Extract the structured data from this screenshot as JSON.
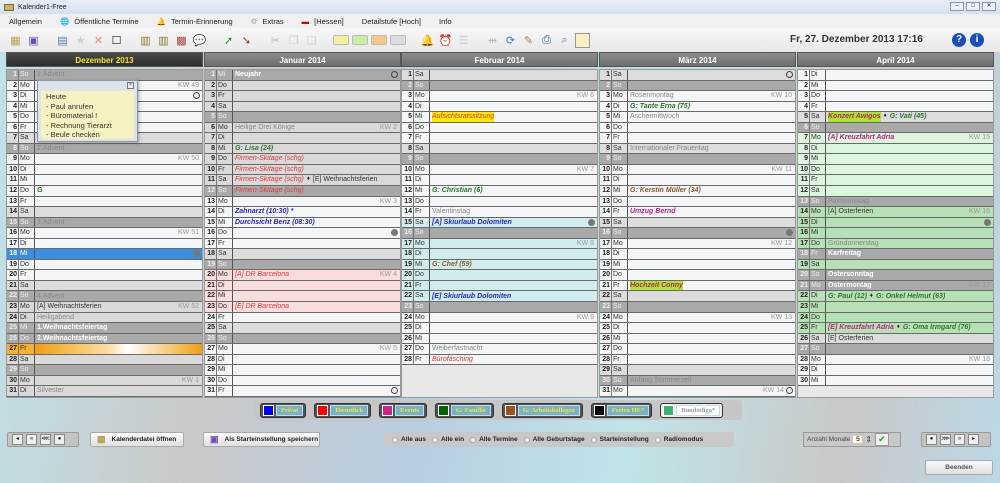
{
  "window": {
    "title": "Kalender1-Free"
  },
  "menu": [
    {
      "label": "Allgemein",
      "icon": ""
    },
    {
      "label": "Öffentliche Termine",
      "icon": "globe-icon"
    },
    {
      "label": "Termin-Erinnerung",
      "icon": "bell-icon"
    },
    {
      "label": "Extras",
      "icon": "gear-icon"
    },
    {
      "label": "[Hessen]",
      "icon": "german-flag-icon"
    },
    {
      "label": "Detailstufe [Hoch]",
      "icon": ""
    },
    {
      "label": "Info",
      "icon": ""
    }
  ],
  "toolbar": {
    "datetime": "Fr, 27. Dezember 2013  17:16",
    "swatches": [
      "#f3f0a0",
      "#c8f0a0",
      "#f5c88a",
      "#dddddd"
    ],
    "note_color": "#f6f2c0"
  },
  "note": {
    "lines": [
      "Heute",
      "- Paul anrufen",
      "- Büromaterial !",
      "- Rechnung Tierarzt",
      "- Beule checken"
    ]
  },
  "months": [
    {
      "title": "Dezember 2013",
      "current": true,
      "days": [
        {
          "wd": "So",
          "bg": "so",
          "items": [
            {
              "text": "1.Advent",
              "style": "hol"
            }
          ]
        },
        {
          "wd": "Mo",
          "bg": "n",
          "kw": "KW 49"
        },
        {
          "wd": "Di",
          "bg": "n",
          "mark": "empty"
        },
        {
          "wd": "Mi",
          "bg": "n"
        },
        {
          "wd": "Do",
          "bg": "n"
        },
        {
          "wd": "Fr",
          "bg": "n"
        },
        {
          "wd": "Sa",
          "bg": "sa"
        },
        {
          "wd": "So",
          "bg": "so",
          "items": [
            {
              "text": "2.Advent",
              "style": "hol"
            }
          ]
        },
        {
          "wd": "Mo",
          "bg": "n",
          "kw": "KW 50"
        },
        {
          "wd": "Di",
          "bg": "n"
        },
        {
          "wd": "Mi",
          "bg": "n"
        },
        {
          "wd": "Do",
          "bg": "n",
          "items": [
            {
              "text": "G",
              "style": "bd"
            }
          ]
        },
        {
          "wd": "Fr",
          "bg": "n"
        },
        {
          "wd": "Sa",
          "bg": "sa"
        },
        {
          "wd": "So",
          "bg": "so",
          "items": [
            {
              "text": "3.Advent",
              "style": "hol"
            }
          ]
        },
        {
          "wd": "Mo",
          "bg": "n",
          "kw": "KW 51"
        },
        {
          "wd": "Di",
          "bg": "n"
        },
        {
          "wd": "Mi",
          "bg": "sel",
          "mark": "full"
        },
        {
          "wd": "Do",
          "bg": "n"
        },
        {
          "wd": "Fr",
          "bg": "n"
        },
        {
          "wd": "Sa",
          "bg": "sa"
        },
        {
          "wd": "So",
          "bg": "so",
          "items": [
            {
              "text": "4.Advent",
              "style": "hol"
            }
          ]
        },
        {
          "wd": "Mo",
          "bg": "fe",
          "kw": "KW 52",
          "items": [
            {
              "text": "[A] Weihnachtsferien",
              "style": "fer"
            }
          ]
        },
        {
          "wd": "Di",
          "bg": "fe",
          "items": [
            {
              "text": "Heiligabend",
              "style": "hol"
            }
          ]
        },
        {
          "wd": "Mi",
          "bg": "so",
          "items": [
            {
              "text": "1.Weihnachtsfeiertag",
              "style": "holb"
            }
          ]
        },
        {
          "wd": "Do",
          "bg": "so",
          "items": [
            {
              "text": "2.Weihnachtsfeiertag",
              "style": "holb"
            }
          ]
        },
        {
          "wd": "Fr",
          "bg": "today"
        },
        {
          "wd": "Sa",
          "bg": "fe"
        },
        {
          "wd": "So",
          "bg": "so"
        },
        {
          "wd": "Mo",
          "bg": "fe",
          "kw": "KW 1"
        },
        {
          "wd": "Di",
          "bg": "fe",
          "items": [
            {
              "text": "Silvester",
              "style": "hol"
            }
          ]
        }
      ]
    },
    {
      "title": "Januar 2014",
      "current": false,
      "days": [
        {
          "wd": "Mi",
          "bg": "so",
          "mark": "empty",
          "items": [
            {
              "text": "Neujahr",
              "style": "holb"
            }
          ]
        },
        {
          "wd": "Do",
          "bg": "fe"
        },
        {
          "wd": "Fr",
          "bg": "fe"
        },
        {
          "wd": "Sa",
          "bg": "fe"
        },
        {
          "wd": "So",
          "bg": "so"
        },
        {
          "wd": "Mo",
          "bg": "fe",
          "kw": "KW 2",
          "items": [
            {
              "text": "Heilige Drei Könige",
              "style": "hol"
            }
          ]
        },
        {
          "wd": "Di",
          "bg": "fe"
        },
        {
          "wd": "Mi",
          "bg": "fe",
          "items": [
            {
              "text": "G: Lisa (24)",
              "style": "bd"
            }
          ]
        },
        {
          "wd": "Do",
          "bg": "fe",
          "items": [
            {
              "text": "Firmen-Skitage (schg)",
              "style": "work"
            }
          ]
        },
        {
          "wd": "Fr",
          "bg": "fe",
          "items": [
            {
              "text": "Firmen-Skitage (schg)",
              "style": "work"
            }
          ]
        },
        {
          "wd": "Sa",
          "bg": "fe",
          "items": [
            {
              "text": "Firmen-Skitage (schg)",
              "style": "work"
            },
            {
              "text": "[E] Weihnachtsferien",
              "style": "fer"
            }
          ]
        },
        {
          "wd": "So",
          "bg": "so",
          "items": [
            {
              "text": "Firmen-Skitage (schg)",
              "style": "work"
            }
          ]
        },
        {
          "wd": "Mo",
          "bg": "n",
          "kw": "KW 3"
        },
        {
          "wd": "Di",
          "bg": "n",
          "items": [
            {
              "text": "Zahnarzt (10:30) *",
              "style": "priv"
            }
          ]
        },
        {
          "wd": "Mi",
          "bg": "n",
          "items": [
            {
              "text": "Durchsicht Benz (08:30)",
              "style": "priv"
            }
          ]
        },
        {
          "wd": "Do",
          "bg": "n",
          "mark": "full"
        },
        {
          "wd": "Fr",
          "bg": "n"
        },
        {
          "wd": "Sa",
          "bg": "sa"
        },
        {
          "wd": "So",
          "bg": "so"
        },
        {
          "wd": "Mo",
          "bg": "pk",
          "kw": "KW 4",
          "items": [
            {
              "text": "[A] DR Barcelona",
              "style": "work"
            }
          ]
        },
        {
          "wd": "Di",
          "bg": "pk"
        },
        {
          "wd": "Mi",
          "bg": "pk"
        },
        {
          "wd": "Do",
          "bg": "pk",
          "items": [
            {
              "text": "[E] DR Barcelona",
              "style": "work"
            }
          ]
        },
        {
          "wd": "Fr",
          "bg": "n"
        },
        {
          "wd": "Sa",
          "bg": "sa"
        },
        {
          "wd": "So",
          "bg": "so"
        },
        {
          "wd": "Mo",
          "bg": "n",
          "kw": "KW 5"
        },
        {
          "wd": "Di",
          "bg": "n"
        },
        {
          "wd": "Mi",
          "bg": "n"
        },
        {
          "wd": "Do",
          "bg": "n"
        },
        {
          "wd": "Fr",
          "bg": "n",
          "mark": "empty"
        }
      ]
    },
    {
      "title": "Februar 2014",
      "current": false,
      "days": [
        {
          "wd": "Sa",
          "bg": "sa"
        },
        {
          "wd": "So",
          "bg": "so"
        },
        {
          "wd": "Mo",
          "bg": "n",
          "kw": "KW 6"
        },
        {
          "wd": "Di",
          "bg": "n"
        },
        {
          "wd": "Mi",
          "bg": "n",
          "items": [
            {
              "text": "Aufsichtsratssitzung",
              "style": "hy"
            }
          ]
        },
        {
          "wd": "Do",
          "bg": "n"
        },
        {
          "wd": "Fr",
          "bg": "n"
        },
        {
          "wd": "Sa",
          "bg": "sa"
        },
        {
          "wd": "So",
          "bg": "so"
        },
        {
          "wd": "Mo",
          "bg": "n",
          "kw": "KW 7"
        },
        {
          "wd": "Di",
          "bg": "n"
        },
        {
          "wd": "Mi",
          "bg": "n",
          "items": [
            {
              "text": "G: Christian (6)",
              "style": "bd"
            }
          ]
        },
        {
          "wd": "Do",
          "bg": "n"
        },
        {
          "wd": "Fr",
          "bg": "n",
          "items": [
            {
              "text": "Valentinstag",
              "style": "hol"
            }
          ]
        },
        {
          "wd": "Sa",
          "bg": "cy",
          "mark": "full",
          "items": [
            {
              "text": "[A] Skiurlaub Dolomiten",
              "style": "priv"
            }
          ]
        },
        {
          "wd": "So",
          "bg": "so"
        },
        {
          "wd": "Mo",
          "bg": "cy",
          "kw": "KW 8"
        },
        {
          "wd": "Di",
          "bg": "cy"
        },
        {
          "wd": "Mi",
          "bg": "cy",
          "items": [
            {
              "text": "G: Chef (59)",
              "style": "col"
            }
          ]
        },
        {
          "wd": "Do",
          "bg": "cy"
        },
        {
          "wd": "Fr",
          "bg": "cy"
        },
        {
          "wd": "Sa",
          "bg": "cy",
          "items": [
            {
              "text": "[E] Skiurlaub Dolomiten",
              "style": "priv"
            }
          ]
        },
        {
          "wd": "So",
          "bg": "so"
        },
        {
          "wd": "Mo",
          "bg": "n",
          "kw": "KW 9"
        },
        {
          "wd": "Di",
          "bg": "n"
        },
        {
          "wd": "Mi",
          "bg": "n"
        },
        {
          "wd": "Do",
          "bg": "n",
          "items": [
            {
              "text": "Weiberfastnacht",
              "style": "hol"
            }
          ]
        },
        {
          "wd": "Fr",
          "bg": "n",
          "items": [
            {
              "text": "Bürofasching",
              "style": "work"
            }
          ]
        }
      ]
    },
    {
      "title": "März 2014",
      "current": false,
      "days": [
        {
          "wd": "Sa",
          "bg": "sa",
          "mark": "empty"
        },
        {
          "wd": "So",
          "bg": "so"
        },
        {
          "wd": "Mo",
          "bg": "n",
          "kw": "KW 10",
          "items": [
            {
              "text": "Rosenmontag",
              "style": "hol"
            }
          ]
        },
        {
          "wd": "Di",
          "bg": "n",
          "items": [
            {
              "text": "G: Tante Erna (75)",
              "style": "bd"
            }
          ]
        },
        {
          "wd": "Mi",
          "bg": "n",
          "items": [
            {
              "text": "Aschermittwoch",
              "style": "hol"
            }
          ]
        },
        {
          "wd": "Do",
          "bg": "n"
        },
        {
          "wd": "Fr",
          "bg": "n"
        },
        {
          "wd": "Sa",
          "bg": "sa",
          "items": [
            {
              "text": "Internationaler Frauentag",
              "style": "hol"
            }
          ]
        },
        {
          "wd": "So",
          "bg": "so"
        },
        {
          "wd": "Mo",
          "bg": "n",
          "kw": "KW 11"
        },
        {
          "wd": "Di",
          "bg": "n"
        },
        {
          "wd": "Mi",
          "bg": "n",
          "items": [
            {
              "text": "G: Kerstin Müller (34)",
              "style": "col"
            }
          ]
        },
        {
          "wd": "Do",
          "bg": "n"
        },
        {
          "wd": "Fr",
          "bg": "n",
          "items": [
            {
              "text": "Umzug Bernd",
              "style": "ev"
            }
          ]
        },
        {
          "wd": "Sa",
          "bg": "sa"
        },
        {
          "wd": "So",
          "bg": "so",
          "mark": "full"
        },
        {
          "wd": "Mo",
          "bg": "n",
          "kw": "KW 12"
        },
        {
          "wd": "Di",
          "bg": "n"
        },
        {
          "wd": "Mi",
          "bg": "n"
        },
        {
          "wd": "Do",
          "bg": "n"
        },
        {
          "wd": "Fr",
          "bg": "n",
          "items": [
            {
              "text": "Hochzeit Conny",
              "style": "hg"
            }
          ]
        },
        {
          "wd": "Sa",
          "bg": "sa"
        },
        {
          "wd": "So",
          "bg": "so"
        },
        {
          "wd": "Mo",
          "bg": "n",
          "kw": "KW 13"
        },
        {
          "wd": "Di",
          "bg": "n"
        },
        {
          "wd": "Mi",
          "bg": "n"
        },
        {
          "wd": "Do",
          "bg": "n"
        },
        {
          "wd": "Fr",
          "bg": "n"
        },
        {
          "wd": "Sa",
          "bg": "sa"
        },
        {
          "wd": "So",
          "bg": "so",
          "items": [
            {
              "text": "Anfang Sommerzeit",
              "style": "hol"
            }
          ]
        },
        {
          "wd": "Mo",
          "bg": "n",
          "kw": "KW 14",
          "mark": "empty"
        }
      ]
    },
    {
      "title": "April 2014",
      "current": false,
      "days": [
        {
          "wd": "Di",
          "bg": "n"
        },
        {
          "wd": "Mi",
          "bg": "n"
        },
        {
          "wd": "Do",
          "bg": "n"
        },
        {
          "wd": "Fr",
          "bg": "n"
        },
        {
          "wd": "Sa",
          "bg": "sa",
          "items": [
            {
              "text": "Konzert Awigos",
              "style": "hg"
            },
            {
              "text": "G: Vati (45)",
              "style": "bd"
            }
          ]
        },
        {
          "wd": "So",
          "bg": "so"
        },
        {
          "wd": "Mo",
          "bg": "lg",
          "kw": "KW 15",
          "items": [
            {
              "text": "[A] Kreuzfahrt Adria",
              "style": "ev"
            }
          ]
        },
        {
          "wd": "Di",
          "bg": "lg"
        },
        {
          "wd": "Mi",
          "bg": "lg"
        },
        {
          "wd": "Do",
          "bg": "lg"
        },
        {
          "wd": "Fr",
          "bg": "lg"
        },
        {
          "wd": "Sa",
          "bg": "lg"
        },
        {
          "wd": "So",
          "bg": "so",
          "items": [
            {
              "text": "Palmsonntag",
              "style": "hol"
            }
          ]
        },
        {
          "wd": "Mo",
          "bg": "g",
          "kw": "KW 16",
          "items": [
            {
              "text": "[A] Osterferien",
              "style": "fer"
            }
          ]
        },
        {
          "wd": "Di",
          "bg": "g",
          "mark": "full"
        },
        {
          "wd": "Mi",
          "bg": "g"
        },
        {
          "wd": "Do",
          "bg": "g",
          "items": [
            {
              "text": "Gründonnerstag",
              "style": "hol"
            }
          ]
        },
        {
          "wd": "Fr",
          "bg": "so",
          "items": [
            {
              "text": "Karfreitag",
              "style": "holb"
            }
          ]
        },
        {
          "wd": "Sa",
          "bg": "g"
        },
        {
          "wd": "So",
          "bg": "so",
          "items": [
            {
              "text": "Ostersonntag",
              "style": "holb"
            }
          ]
        },
        {
          "wd": "Mo",
          "bg": "so",
          "kw": "KW 17",
          "items": [
            {
              "text": "Ostermontag",
              "style": "holb"
            }
          ]
        },
        {
          "wd": "Di",
          "bg": "g",
          "items": [
            {
              "text": "G: Paul (12)",
              "style": "bd"
            },
            {
              "text": "G: Onkel Helmut (63)",
              "style": "bd"
            }
          ]
        },
        {
          "wd": "Mi",
          "bg": "g"
        },
        {
          "wd": "Do",
          "bg": "g"
        },
        {
          "wd": "Fr",
          "bg": "g",
          "items": [
            {
              "text": "[E] Kreuzfahrt Adria",
              "style": "ev"
            },
            {
              "text": "G: Oma Irmgard (76)",
              "style": "bd"
            }
          ]
        },
        {
          "wd": "Sa",
          "bg": "sa",
          "items": [
            {
              "text": "[E] Osterferien",
              "style": "fer"
            }
          ]
        },
        {
          "wd": "So",
          "bg": "so"
        },
        {
          "wd": "Mo",
          "bg": "n",
          "kw": "KW 18"
        },
        {
          "wd": "Di",
          "bg": "n"
        },
        {
          "wd": "Mi",
          "bg": "n"
        }
      ]
    }
  ],
  "legend": [
    {
      "label": "Privat",
      "color": "#0000ff",
      "on": true
    },
    {
      "label": "Dienstlich",
      "color": "#ff0000",
      "on": true
    },
    {
      "label": "Events",
      "color": "#d0208a",
      "on": true
    },
    {
      "label": "G: Familie",
      "color": "#006400",
      "on": true
    },
    {
      "label": "G: Arbeitskollegen",
      "color": "#a0501a",
      "on": true
    },
    {
      "label": "Ferien HE*",
      "color": "#000000",
      "on": true
    },
    {
      "label": "Bundesliga*",
      "color": "#3cb371",
      "on": false
    }
  ],
  "buttons": {
    "open_calendar": "Kalenderdatei öffnen",
    "save_start": "Als Starteinstellung speichern",
    "quit": "Beenden"
  },
  "radios": [
    "Alle aus",
    "Alle ein",
    "Alle Termine",
    "Alle Geburtstage",
    "Starteinstellung",
    "Radiomodus"
  ],
  "months_count": {
    "label": "Anzahl Monate",
    "value": "5"
  }
}
